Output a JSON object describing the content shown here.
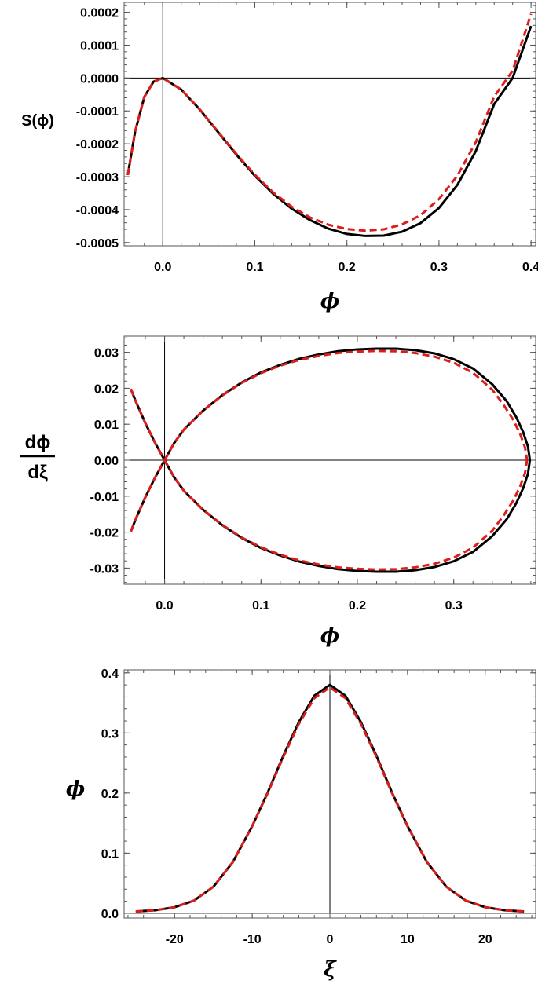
{
  "chart_data": [
    {
      "type": "line",
      "xlabel": "ϕ",
      "ylabel": "S(ϕ)",
      "xlim": [
        -0.042,
        0.405
      ],
      "ylim": [
        -0.00051,
        0.00023
      ],
      "xticks": [
        0.0,
        0.1,
        0.2,
        0.3,
        0.4
      ],
      "xtick_labels": [
        "0.0",
        "0.1",
        "0.2",
        "0.3",
        "0.4"
      ],
      "yticks": [
        0.0002,
        0.0001,
        0.0,
        -0.0001,
        -0.0002,
        -0.0003,
        -0.0004,
        -0.0005
      ],
      "ytick_labels": [
        "0.0002",
        "0.0001",
        "0.0000",
        "-0.0001",
        "-0.0002",
        "-0.0003",
        "-0.0004",
        "-0.0005"
      ],
      "grid": false,
      "series": [
        {
          "color": "#000000",
          "style": "solid",
          "x": [
            -0.038,
            -0.03,
            -0.02,
            -0.01,
            0.0,
            0.02,
            0.04,
            0.06,
            0.08,
            0.1,
            0.12,
            0.14,
            0.16,
            0.18,
            0.2,
            0.22,
            0.24,
            0.26,
            0.28,
            0.3,
            0.32,
            0.34,
            0.36,
            0.38,
            0.4
          ],
          "y": [
            -0.000295,
            -0.000162,
            -5.7e-05,
            -1.1e-05,
            0.0,
            -3.5e-05,
            -9.5e-05,
            -0.000164,
            -0.000233,
            -0.000297,
            -0.000352,
            -0.000397,
            -0.000432,
            -0.000458,
            -0.000474,
            -0.00048,
            -0.000479,
            -0.000467,
            -0.000441,
            -0.000395,
            -0.000325,
            -0.000222,
            -7.9e-05,
            0.0,
            0.000158
          ]
        },
        {
          "color": "#dd1c1c",
          "style": "dashed",
          "x": [
            -0.038,
            -0.03,
            -0.02,
            -0.01,
            0.0,
            0.02,
            0.04,
            0.06,
            0.08,
            0.1,
            0.12,
            0.14,
            0.16,
            0.18,
            0.2,
            0.22,
            0.24,
            0.26,
            0.28,
            0.3,
            0.32,
            0.34,
            0.36,
            0.38,
            0.4
          ],
          "y": [
            -0.000295,
            -0.000162,
            -5.7e-05,
            -1.1e-05,
            0.0,
            -3.5e-05,
            -9.5e-05,
            -0.000163,
            -0.000231,
            -0.000294,
            -0.000348,
            -0.000391,
            -0.000424,
            -0.000446,
            -0.000459,
            -0.000464,
            -0.00046,
            -0.000445,
            -0.000417,
            -0.000368,
            -0.000297,
            -0.000195,
            -5.6e-05,
            2.2e-05,
            0.000195
          ]
        }
      ]
    },
    {
      "type": "line",
      "xlabel": "ϕ",
      "ylabel_num": "dϕ",
      "ylabel_den": "dξ",
      "xlim": [
        -0.042,
        0.385
      ],
      "ylim": [
        -0.0345,
        0.0345
      ],
      "xticks": [
        0.0,
        0.1,
        0.2,
        0.3
      ],
      "xtick_labels": [
        "0.0",
        "0.1",
        "0.2",
        "0.3"
      ],
      "yticks": [
        0.03,
        0.02,
        0.01,
        0.0,
        -0.01,
        -0.02,
        -0.03
      ],
      "ytick_labels": [
        "0.03",
        "0.02",
        "0.01",
        "0.00",
        "-0.01",
        "-0.02",
        "-0.03"
      ],
      "grid": false,
      "series": [
        {
          "color": "#000000",
          "style": "solid",
          "x": [
            0.0,
            0.01,
            0.02,
            0.04,
            0.06,
            0.08,
            0.1,
            0.12,
            0.14,
            0.16,
            0.18,
            0.2,
            0.22,
            0.24,
            0.26,
            0.28,
            0.3,
            0.32,
            0.34,
            0.355,
            0.365,
            0.372,
            0.377,
            0.379
          ],
          "y": [
            0.0,
            0.0048,
            0.0085,
            0.0138,
            0.0181,
            0.0216,
            0.0244,
            0.0265,
            0.0282,
            0.0294,
            0.0303,
            0.0308,
            0.031,
            0.031,
            0.0306,
            0.0297,
            0.0281,
            0.0255,
            0.0211,
            0.0164,
            0.0119,
            0.0078,
            0.0038,
            0.0
          ]
        },
        {
          "color": "#dd1c1c",
          "style": "dashed",
          "x": [
            0.0,
            0.01,
            0.02,
            0.04,
            0.06,
            0.08,
            0.1,
            0.12,
            0.14,
            0.16,
            0.18,
            0.2,
            0.22,
            0.24,
            0.26,
            0.28,
            0.3,
            0.32,
            0.34,
            0.352,
            0.362,
            0.369,
            0.374,
            0.376
          ],
          "y": [
            0.0,
            0.0048,
            0.0085,
            0.0138,
            0.018,
            0.0215,
            0.0242,
            0.0263,
            0.0279,
            0.029,
            0.0298,
            0.0302,
            0.0304,
            0.0303,
            0.0298,
            0.0288,
            0.0271,
            0.0243,
            0.0196,
            0.0153,
            0.0111,
            0.0072,
            0.0035,
            0.0
          ]
        },
        {
          "color": "#000000",
          "style": "solid",
          "x": [
            -0.035,
            -0.03,
            -0.02,
            -0.01,
            0.0
          ],
          "y": [
            0.0198,
            0.0164,
            0.0103,
            0.0049,
            0.0
          ]
        },
        {
          "color": "#dd1c1c",
          "style": "dashed",
          "x": [
            -0.035,
            -0.03,
            -0.02,
            -0.01,
            0.0
          ],
          "y": [
            0.0198,
            0.0164,
            0.0103,
            0.0049,
            0.0
          ]
        }
      ]
    },
    {
      "type": "line",
      "xlabel": "ξ",
      "ylabel": "ϕ",
      "xlim": [
        -26.5,
        26.5
      ],
      "ylim": [
        -0.008,
        0.405
      ],
      "xticks": [
        -20,
        -10,
        0,
        10,
        20
      ],
      "xtick_labels": [
        "-20",
        "-10",
        "0",
        "10",
        "20"
      ],
      "yticks": [
        0.4,
        0.3,
        0.2,
        0.1,
        0.0
      ],
      "ytick_labels": [
        "0.4",
        "0.3",
        "0.2",
        "0.1",
        "0.0"
      ],
      "grid": false,
      "series": [
        {
          "color": "#000000",
          "style": "solid",
          "x": [
            -25,
            -22.5,
            -20,
            -17.5,
            -15,
            -12.5,
            -10,
            -8,
            -6,
            -4,
            -2,
            0,
            2,
            4,
            6,
            8,
            10,
            12.5,
            15,
            17.5,
            20,
            22.5,
            25
          ],
          "y": [
            0.003,
            0.005,
            0.01,
            0.021,
            0.044,
            0.085,
            0.145,
            0.201,
            0.262,
            0.318,
            0.362,
            0.38,
            0.362,
            0.318,
            0.262,
            0.201,
            0.145,
            0.085,
            0.044,
            0.021,
            0.01,
            0.005,
            0.003
          ]
        },
        {
          "color": "#dd1c1c",
          "style": "dashed",
          "x": [
            -25,
            -22.5,
            -20,
            -17.5,
            -15,
            -12.5,
            -10,
            -8,
            -6,
            -4,
            -2,
            0,
            2,
            4,
            6,
            8,
            10,
            12.5,
            15,
            17.5,
            20,
            22.5,
            25
          ],
          "y": [
            0.003,
            0.005,
            0.01,
            0.021,
            0.044,
            0.085,
            0.145,
            0.2,
            0.26,
            0.315,
            0.358,
            0.376,
            0.358,
            0.315,
            0.26,
            0.2,
            0.145,
            0.085,
            0.044,
            0.021,
            0.01,
            0.005,
            0.003
          ]
        }
      ]
    }
  ]
}
